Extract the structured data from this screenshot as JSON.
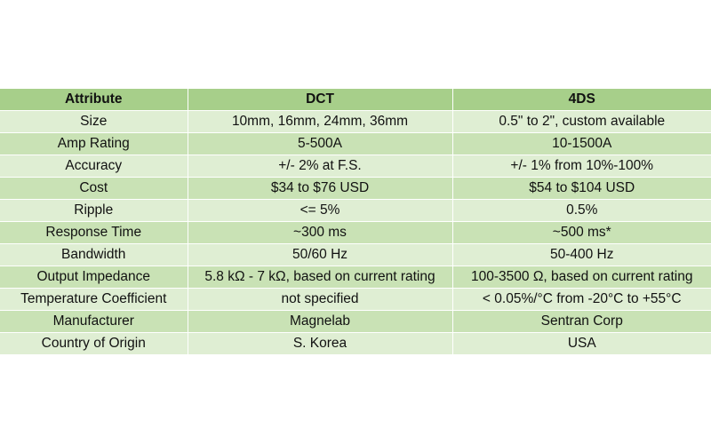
{
  "table": {
    "headers": [
      "Attribute",
      "DCT",
      "4DS"
    ],
    "rows": [
      [
        "Size",
        "10mm, 16mm, 24mm, 36mm",
        "0.5\" to 2\", custom available"
      ],
      [
        "Amp Rating",
        "5-500A",
        "10-1500A"
      ],
      [
        "Accuracy",
        "+/- 2% at F.S.",
        "+/- 1% from 10%-100%"
      ],
      [
        "Cost",
        "$34 to $76 USD",
        "$54 to $104 USD"
      ],
      [
        "Ripple",
        "<= 5%",
        "0.5%"
      ],
      [
        "Response Time",
        "~300 ms",
        "~500 ms*"
      ],
      [
        "Bandwidth",
        "50/60 Hz",
        "50-400 Hz"
      ],
      [
        "Output Impedance",
        "5.8 kΩ - 7 kΩ, based on current rating",
        "100-3500 Ω, based on current rating"
      ],
      [
        "Temperature Coefficient",
        "not specified",
        "< 0.05%/°C from -20°C to +55°C"
      ],
      [
        "Manufacturer",
        "Magnelab",
        "Sentran Corp"
      ],
      [
        "Country of Origin",
        "S. Korea",
        "USA"
      ]
    ]
  }
}
